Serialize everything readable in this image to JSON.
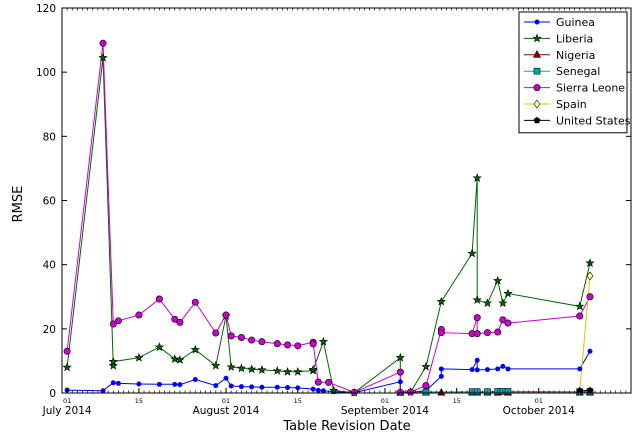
{
  "chart_data": {
    "type": "line",
    "xlabel": "Table Revision Date",
    "ylabel": "RMSE",
    "ylim": [
      0,
      120
    ],
    "xlim": [
      "2014-06-30",
      "2014-10-19"
    ],
    "yticks": [
      0,
      20,
      40,
      60,
      80,
      100,
      120
    ],
    "xticks_major": [
      {
        "date": "2014-07-01",
        "day": "01",
        "month": "July 2014"
      },
      {
        "date": "2014-07-15",
        "day": "15",
        "month": ""
      },
      {
        "date": "2014-08-01",
        "day": "01",
        "month": "August 2014"
      },
      {
        "date": "2014-08-15",
        "day": "15",
        "month": ""
      },
      {
        "date": "2014-09-01",
        "day": "01",
        "month": "September 2014"
      },
      {
        "date": "2014-09-15",
        "day": "15",
        "month": ""
      },
      {
        "date": "2014-10-01",
        "day": "01",
        "month": "October 2014"
      }
    ],
    "legend_position": "top-right",
    "grid": false,
    "series": [
      {
        "name": "Guinea",
        "color": "#0000ff",
        "marker": "point",
        "points": [
          [
            "2014-07-01",
            0.9
          ],
          [
            "2014-07-08",
            0.7
          ],
          [
            "2014-07-10",
            3.2
          ],
          [
            "2014-07-11",
            3.0
          ],
          [
            "2014-07-15",
            2.8
          ],
          [
            "2014-07-19",
            2.7
          ],
          [
            "2014-07-22",
            2.7
          ],
          [
            "2014-07-23",
            2.6
          ],
          [
            "2014-07-26",
            4.2
          ],
          [
            "2014-07-30",
            2.3
          ],
          [
            "2014-08-01",
            4.6
          ],
          [
            "2014-08-02",
            2.2
          ],
          [
            "2014-08-04",
            2.0
          ],
          [
            "2014-08-06",
            1.9
          ],
          [
            "2014-08-08",
            1.8
          ],
          [
            "2014-08-11",
            1.8
          ],
          [
            "2014-08-13",
            1.7
          ],
          [
            "2014-08-15",
            1.6
          ],
          [
            "2014-08-18",
            1.2
          ],
          [
            "2014-08-19",
            0.8
          ],
          [
            "2014-08-20",
            0.7
          ],
          [
            "2014-08-22",
            0.4
          ],
          [
            "2014-08-26",
            0.1
          ],
          [
            "2014-09-04",
            3.5
          ],
          [
            "2014-09-04",
            0.3
          ],
          [
            "2014-09-06",
            0.2
          ],
          [
            "2014-09-09",
            0.7
          ],
          [
            "2014-09-12",
            5.2
          ],
          [
            "2014-09-12",
            7.5
          ],
          [
            "2014-09-18",
            7.3
          ],
          [
            "2014-09-19",
            10.2
          ],
          [
            "2014-09-19",
            7.2
          ],
          [
            "2014-09-21",
            7.3
          ],
          [
            "2014-09-23",
            7.5
          ],
          [
            "2014-09-24",
            8.3
          ],
          [
            "2014-09-25",
            7.5
          ],
          [
            "2014-10-09",
            7.5
          ],
          [
            "2014-10-11",
            13.0
          ]
        ]
      },
      {
        "name": "Liberia",
        "color": "#006600",
        "marker": "star",
        "points": [
          [
            "2014-07-01",
            8.0
          ],
          [
            "2014-07-08",
            104.5
          ],
          [
            "2014-07-10",
            8.5
          ],
          [
            "2014-07-10",
            9.8
          ],
          [
            "2014-07-15",
            11.0
          ],
          [
            "2014-07-19",
            14.3
          ],
          [
            "2014-07-22",
            10.6
          ],
          [
            "2014-07-23",
            10.3
          ],
          [
            "2014-07-26",
            13.5
          ],
          [
            "2014-07-30",
            8.5
          ],
          [
            "2014-08-01",
            24.0
          ],
          [
            "2014-08-02",
            8.1
          ],
          [
            "2014-08-04",
            7.7
          ],
          [
            "2014-08-06",
            7.4
          ],
          [
            "2014-08-08",
            7.2
          ],
          [
            "2014-08-11",
            6.9
          ],
          [
            "2014-08-13",
            6.6
          ],
          [
            "2014-08-15",
            6.6
          ],
          [
            "2014-08-18",
            7.0
          ],
          [
            "2014-08-18",
            7.3
          ],
          [
            "2014-08-20",
            16.0
          ],
          [
            "2014-08-22",
            0.8
          ],
          [
            "2014-08-26",
            0.1
          ],
          [
            "2014-09-04",
            11.0
          ],
          [
            "2014-09-04",
            0.2
          ],
          [
            "2014-09-06",
            0.3
          ],
          [
            "2014-09-09",
            8.2
          ],
          [
            "2014-09-12",
            28.5
          ],
          [
            "2014-09-18",
            43.5
          ],
          [
            "2014-09-19",
            67.0
          ],
          [
            "2014-09-19",
            29.0
          ],
          [
            "2014-09-21",
            28.0
          ],
          [
            "2014-09-23",
            35.0
          ],
          [
            "2014-09-24",
            28.0
          ],
          [
            "2014-09-25",
            31.0
          ],
          [
            "2014-10-09",
            27.0
          ],
          [
            "2014-10-11",
            40.5
          ]
        ]
      },
      {
        "name": "Nigeria",
        "color": "#8b0000",
        "marker": "triangle",
        "points": [
          [
            "2014-09-04",
            0.1
          ],
          [
            "2014-09-09",
            0.1
          ],
          [
            "2014-09-12",
            0.1
          ],
          [
            "2014-09-18",
            0.1
          ],
          [
            "2014-09-19",
            0.1
          ],
          [
            "2014-09-21",
            0.1
          ],
          [
            "2014-09-23",
            0.1
          ],
          [
            "2014-09-25",
            0.1
          ],
          [
            "2014-10-09",
            0.1
          ],
          [
            "2014-10-11",
            0.1
          ]
        ]
      },
      {
        "name": "Senegal",
        "color": "#00aaaa",
        "marker": "square",
        "points": [
          [
            "2014-09-09",
            0.3
          ],
          [
            "2014-09-18",
            0.4
          ],
          [
            "2014-09-19",
            0.4
          ],
          [
            "2014-09-21",
            0.4
          ],
          [
            "2014-09-23",
            0.5
          ],
          [
            "2014-09-24",
            0.5
          ],
          [
            "2014-09-25",
            0.5
          ],
          [
            "2014-10-09",
            0.4
          ],
          [
            "2014-10-11",
            0.4
          ]
        ]
      },
      {
        "name": "Sierra Leone",
        "color": "#cc00cc",
        "marker": "circle",
        "points": [
          [
            "2014-07-01",
            13.0
          ],
          [
            "2014-07-08",
            109.0
          ],
          [
            "2014-07-10",
            21.5
          ],
          [
            "2014-07-11",
            22.5
          ],
          [
            "2014-07-15",
            24.3
          ],
          [
            "2014-07-19",
            29.3
          ],
          [
            "2014-07-22",
            23.0
          ],
          [
            "2014-07-23",
            22.0
          ],
          [
            "2014-07-26",
            28.3
          ],
          [
            "2014-07-30",
            18.7
          ],
          [
            "2014-08-01",
            24.3
          ],
          [
            "2014-08-02",
            17.8
          ],
          [
            "2014-08-04",
            17.3
          ],
          [
            "2014-08-06",
            16.5
          ],
          [
            "2014-08-08",
            16.0
          ],
          [
            "2014-08-11",
            15.4
          ],
          [
            "2014-08-13",
            15.0
          ],
          [
            "2014-08-15",
            14.7
          ],
          [
            "2014-08-18",
            15.8
          ],
          [
            "2014-08-18",
            15.3
          ],
          [
            "2014-08-19",
            3.4
          ],
          [
            "2014-08-21",
            3.3
          ],
          [
            "2014-08-26",
            0.2
          ],
          [
            "2014-09-04",
            6.5
          ],
          [
            "2014-09-04",
            0.2
          ],
          [
            "2014-09-06",
            0.3
          ],
          [
            "2014-09-09",
            2.3
          ],
          [
            "2014-09-12",
            19.8
          ],
          [
            "2014-09-12",
            18.8
          ],
          [
            "2014-09-18",
            18.5
          ],
          [
            "2014-09-19",
            23.5
          ],
          [
            "2014-09-19",
            18.5
          ],
          [
            "2014-09-21",
            18.8
          ],
          [
            "2014-09-23",
            19.0
          ],
          [
            "2014-09-24",
            22.8
          ],
          [
            "2014-09-25",
            21.8
          ],
          [
            "2014-10-09",
            24.0
          ],
          [
            "2014-10-11",
            30.0
          ]
        ]
      },
      {
        "name": "Spain",
        "color": "#cccc00",
        "marker": "diamond",
        "points": [
          [
            "2014-10-09",
            0.5
          ],
          [
            "2014-10-11",
            36.5
          ]
        ]
      },
      {
        "name": "United States",
        "color": "#000000",
        "marker": "pentagon",
        "points": [
          [
            "2014-10-09",
            0.7
          ],
          [
            "2014-10-11",
            0.8
          ]
        ]
      }
    ]
  }
}
